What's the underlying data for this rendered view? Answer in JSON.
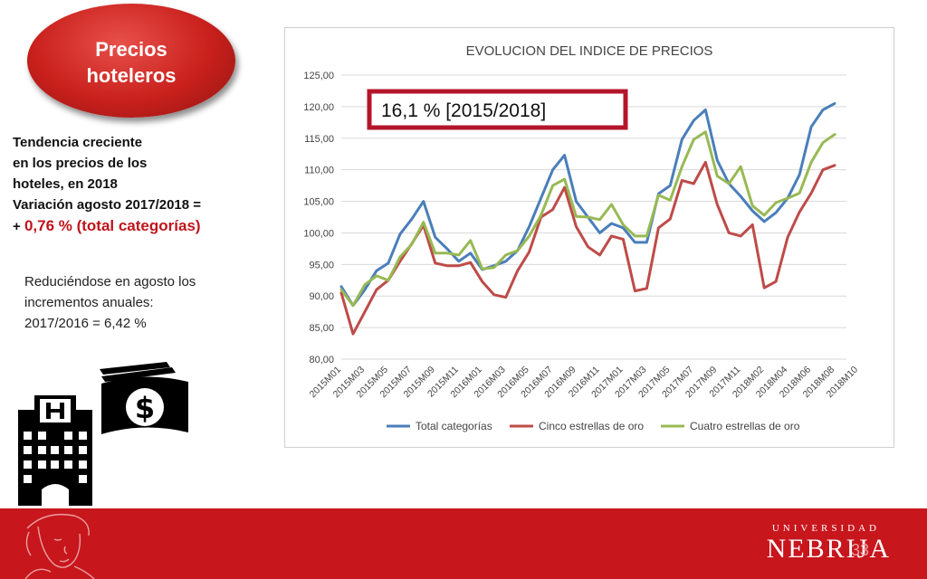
{
  "badge": {
    "title": "Precios\nhoteleros"
  },
  "left_text": {
    "line1": "Tendencia creciente",
    "line2": "en los precios de los",
    "line3": "hoteles,  en 2018",
    "line4": "Variación agosto 2017/2018 =",
    "line5_prefix": "+ ",
    "line5_highlight": "0,76 % (total categorías)",
    "para2_line1": "Reduciéndose en agosto los",
    "para2_line2": "incrementos anuales:",
    "para2_line3": "2017/2016 = 6,42 %"
  },
  "footer": {
    "university_top": "UNIVERSIDAD",
    "university_name": "NEBRIJA",
    "page": "33"
  },
  "icons": {
    "hotel": "hotel-building-icon",
    "money": "money-bills-icon",
    "bust": "nebrija-portrait"
  },
  "colors": {
    "accent": "#c8161d",
    "total": "#4a7ebb",
    "cinco": "#be4b48",
    "cuatro": "#98b954",
    "callout": "#b5152b"
  },
  "chart_data": {
    "type": "line",
    "title": "EVOLUCION DEL INDICE DE PRECIOS",
    "annotation": "16,1 % [2015/2018]",
    "ylim": [
      80,
      125
    ],
    "yticks": [
      "80,00",
      "85,00",
      "90,00",
      "95,00",
      "100,00",
      "105,00",
      "110,00",
      "115,00",
      "120,00",
      "125,00"
    ],
    "xtick_labels": [
      "2015M01",
      "2015M03",
      "2015M05",
      "2015M07",
      "2015M09",
      "2015M11",
      "2016M01",
      "2016M03",
      "2016M05",
      "2016M07",
      "2016M09",
      "2016M11",
      "2017M01",
      "2017M03",
      "2017M05",
      "2017M07",
      "2017M09",
      "2017M11",
      "2018M02",
      "2018M04",
      "2018M06",
      "2018M08",
      "2018M10"
    ],
    "n_points": 44,
    "grid": true,
    "legend": "bottom",
    "series": [
      {
        "name": "Total categorías",
        "color": "#4a7ebb",
        "values": [
          91.5,
          88.5,
          91.0,
          94.0,
          95.2,
          99.8,
          102.2,
          105.0,
          99.3,
          97.5,
          95.5,
          96.8,
          94.2,
          94.8,
          95.5,
          97.2,
          101.0,
          105.5,
          110.0,
          112.3,
          105.0,
          102.5,
          100.0,
          101.5,
          100.8,
          98.5,
          98.5,
          106.2,
          107.5,
          114.8,
          117.8,
          119.5,
          111.5,
          107.8,
          105.8,
          103.5,
          101.8,
          103.2,
          105.5,
          109.2,
          116.8,
          119.5,
          120.5,
          null
        ]
      },
      {
        "name": "Cinco estrellas de oro",
        "color": "#be4b48",
        "values": [
          90.5,
          84.0,
          87.5,
          91.0,
          92.5,
          95.5,
          98.3,
          101.2,
          95.2,
          94.8,
          94.8,
          95.3,
          92.3,
          90.2,
          89.8,
          94.0,
          97.0,
          102.5,
          103.7,
          107.2,
          101.0,
          97.8,
          96.5,
          99.5,
          99.0,
          90.8,
          91.2,
          100.8,
          102.2,
          108.3,
          107.8,
          111.2,
          104.5,
          100.0,
          99.5,
          101.3,
          91.3,
          92.3,
          99.3,
          103.3,
          106.3,
          110.0,
          110.7,
          null
        ]
      },
      {
        "name": "Cuatro estrellas de oro",
        "color": "#98b954",
        "values": [
          91.0,
          88.5,
          91.8,
          93.2,
          92.5,
          96.2,
          98.2,
          101.7,
          96.8,
          96.8,
          96.5,
          98.8,
          94.3,
          94.5,
          96.5,
          97.2,
          99.5,
          102.8,
          107.5,
          108.5,
          102.6,
          102.5,
          102.1,
          104.5,
          101.3,
          99.5,
          99.5,
          106.0,
          105.2,
          110.5,
          114.8,
          116.0,
          109.0,
          107.8,
          110.5,
          104.3,
          102.8,
          104.8,
          105.5,
          106.3,
          111.2,
          114.3,
          115.6,
          null
        ]
      }
    ]
  }
}
